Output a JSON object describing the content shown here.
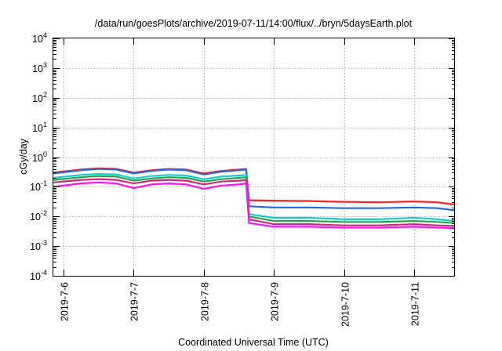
{
  "chart_data": {
    "type": "line",
    "title": "/data/run/goesPlots/archive/2019-07-11/14:00/flux/../bryn/5daysEarth.plot",
    "xlabel": "Coordinated Universal Time (UTC)",
    "ylabel": "cGy/day",
    "y_scale": "log",
    "ylim": [
      0.0001,
      10000
    ],
    "xlim": [
      "2019-07-05T20:30",
      "2019-07-11T14:00"
    ],
    "x_ticks": [
      {
        "x": "2019-07-06T00:00",
        "label": "2019-7-6"
      },
      {
        "x": "2019-07-07T00:00",
        "label": "2019-7-7"
      },
      {
        "x": "2019-07-08T00:00",
        "label": "2019-7-8"
      },
      {
        "x": "2019-07-09T00:00",
        "label": "2019-7-9"
      },
      {
        "x": "2019-07-10T00:00",
        "label": "2019-7-10"
      },
      {
        "x": "2019-07-11T00:00",
        "label": "2019-7-11"
      }
    ],
    "y_ticks": [
      {
        "base": "10",
        "exp": "-4"
      },
      {
        "base": "10",
        "exp": "-3"
      },
      {
        "base": "10",
        "exp": "-2"
      },
      {
        "base": "10",
        "exp": "-1"
      },
      {
        "base": "10",
        "exp": "0"
      },
      {
        "base": "10",
        "exp": "1"
      },
      {
        "base": "10",
        "exp": "2"
      },
      {
        "base": "10",
        "exp": "3"
      },
      {
        "base": "10",
        "exp": "4"
      }
    ],
    "grid": true,
    "series": [
      {
        "color": "#ff2020",
        "x": [
          "2019-07-05T20:30",
          "2019-07-06T06:00",
          "2019-07-06T12:00",
          "2019-07-06T18:00",
          "2019-07-07T00:00",
          "2019-07-07T06:00",
          "2019-07-07T12:00",
          "2019-07-07T18:00",
          "2019-07-08T00:00",
          "2019-07-08T06:00",
          "2019-07-08T12:00",
          "2019-07-08T14:30",
          "2019-07-08T15:30",
          "2019-07-09T00:00",
          "2019-07-09T12:00",
          "2019-07-10T00:00",
          "2019-07-10T12:00",
          "2019-07-11T00:00",
          "2019-07-11T08:00",
          "2019-07-11T14:00"
        ],
        "y": [
          0.3,
          0.38,
          0.42,
          0.4,
          0.3,
          0.36,
          0.4,
          0.38,
          0.28,
          0.34,
          0.38,
          0.4,
          0.035,
          0.034,
          0.033,
          0.031,
          0.03,
          0.032,
          0.03,
          0.025
        ]
      },
      {
        "color": "#2468e8",
        "x": [
          "2019-07-05T20:30",
          "2019-07-06T06:00",
          "2019-07-06T12:00",
          "2019-07-06T18:00",
          "2019-07-07T00:00",
          "2019-07-07T06:00",
          "2019-07-07T12:00",
          "2019-07-07T18:00",
          "2019-07-08T00:00",
          "2019-07-08T06:00",
          "2019-07-08T12:00",
          "2019-07-08T14:30",
          "2019-07-08T15:30",
          "2019-07-09T00:00",
          "2019-07-09T12:00",
          "2019-07-10T00:00",
          "2019-07-10T12:00",
          "2019-07-11T00:00",
          "2019-07-11T08:00",
          "2019-07-11T14:00"
        ],
        "y": [
          0.28,
          0.36,
          0.4,
          0.38,
          0.28,
          0.34,
          0.38,
          0.36,
          0.26,
          0.32,
          0.36,
          0.38,
          0.022,
          0.02,
          0.02,
          0.019,
          0.019,
          0.02,
          0.019,
          0.016
        ]
      },
      {
        "color": "#10d0c8",
        "x": [
          "2019-07-05T20:30",
          "2019-07-06T06:00",
          "2019-07-06T12:00",
          "2019-07-06T18:00",
          "2019-07-07T00:00",
          "2019-07-07T06:00",
          "2019-07-07T12:00",
          "2019-07-07T18:00",
          "2019-07-08T00:00",
          "2019-07-08T06:00",
          "2019-07-08T12:00",
          "2019-07-08T14:30",
          "2019-07-08T15:30",
          "2019-07-09T00:00",
          "2019-07-09T12:00",
          "2019-07-10T00:00",
          "2019-07-10T12:00",
          "2019-07-11T00:00",
          "2019-07-11T08:00",
          "2019-07-11T14:00"
        ],
        "y": [
          0.2,
          0.25,
          0.27,
          0.26,
          0.19,
          0.23,
          0.25,
          0.24,
          0.18,
          0.22,
          0.24,
          0.25,
          0.012,
          0.009,
          0.009,
          0.008,
          0.008,
          0.009,
          0.008,
          0.007
        ]
      },
      {
        "color": "#2aa24a",
        "x": [
          "2019-07-05T20:30",
          "2019-07-06T06:00",
          "2019-07-06T12:00",
          "2019-07-06T18:00",
          "2019-07-07T00:00",
          "2019-07-07T06:00",
          "2019-07-07T12:00",
          "2019-07-07T18:00",
          "2019-07-08T00:00",
          "2019-07-08T06:00",
          "2019-07-08T12:00",
          "2019-07-08T14:30",
          "2019-07-08T15:30",
          "2019-07-09T00:00",
          "2019-07-09T12:00",
          "2019-07-10T00:00",
          "2019-07-10T12:00",
          "2019-07-11T00:00",
          "2019-07-11T08:00",
          "2019-07-11T14:00"
        ],
        "y": [
          0.17,
          0.21,
          0.23,
          0.22,
          0.16,
          0.19,
          0.21,
          0.2,
          0.15,
          0.18,
          0.2,
          0.21,
          0.01,
          0.007,
          0.007,
          0.0065,
          0.0065,
          0.007,
          0.0065,
          0.006
        ]
      },
      {
        "color": "#d0267a",
        "x": [
          "2019-07-05T20:30",
          "2019-07-06T06:00",
          "2019-07-06T12:00",
          "2019-07-06T18:00",
          "2019-07-07T00:00",
          "2019-07-07T06:00",
          "2019-07-07T12:00",
          "2019-07-07T18:00",
          "2019-07-08T00:00",
          "2019-07-08T06:00",
          "2019-07-08T12:00",
          "2019-07-08T14:30",
          "2019-07-08T15:30",
          "2019-07-09T00:00",
          "2019-07-09T12:00",
          "2019-07-10T00:00",
          "2019-07-10T12:00",
          "2019-07-11T00:00",
          "2019-07-11T08:00",
          "2019-07-11T14:00"
        ],
        "y": [
          0.14,
          0.17,
          0.18,
          0.17,
          0.13,
          0.16,
          0.17,
          0.16,
          0.12,
          0.15,
          0.16,
          0.17,
          0.008,
          0.0055,
          0.0055,
          0.005,
          0.005,
          0.0055,
          0.005,
          0.0048
        ]
      },
      {
        "color": "#ff10ff",
        "x": [
          "2019-07-05T20:30",
          "2019-07-06T06:00",
          "2019-07-06T12:00",
          "2019-07-06T18:00",
          "2019-07-07T00:00",
          "2019-07-07T06:00",
          "2019-07-07T12:00",
          "2019-07-07T18:00",
          "2019-07-08T00:00",
          "2019-07-08T06:00",
          "2019-07-08T12:00",
          "2019-07-08T14:30",
          "2019-07-08T15:30",
          "2019-07-09T00:00",
          "2019-07-09T12:00",
          "2019-07-10T00:00",
          "2019-07-10T12:00",
          "2019-07-11T00:00",
          "2019-07-11T08:00",
          "2019-07-11T14:00"
        ],
        "y": [
          0.1,
          0.13,
          0.14,
          0.13,
          0.09,
          0.12,
          0.13,
          0.12,
          0.085,
          0.11,
          0.12,
          0.13,
          0.006,
          0.0045,
          0.0045,
          0.0042,
          0.0042,
          0.0045,
          0.0042,
          0.004
        ]
      }
    ]
  }
}
